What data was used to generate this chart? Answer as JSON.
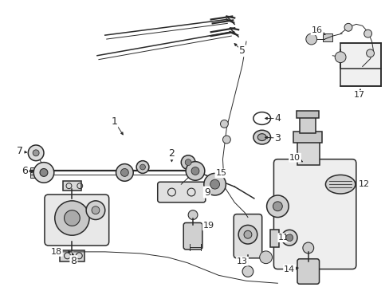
{
  "background_color": "#ffffff",
  "line_color": "#2a2a2a",
  "lw_thin": 0.7,
  "lw_med": 1.1,
  "lw_thick": 1.6,
  "figsize": [
    4.89,
    3.6
  ],
  "dpi": 100
}
